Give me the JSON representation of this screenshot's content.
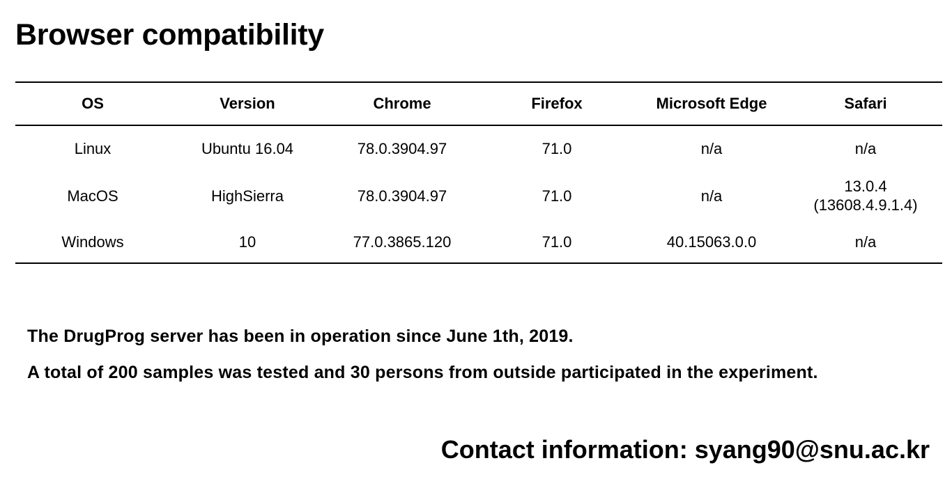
{
  "title": "Browser compatibility",
  "table": {
    "headers": [
      "OS",
      "Version",
      "Chrome",
      "Firefox",
      "Microsoft Edge",
      "Safari"
    ],
    "rows": [
      {
        "os": "Linux",
        "version": "Ubuntu 16.04",
        "chrome": "78.0.3904.97",
        "firefox": "71.0",
        "edge": "n/a",
        "safari": [
          "n/a"
        ]
      },
      {
        "os": "MacOS",
        "version": "HighSierra",
        "chrome": "78.0.3904.97",
        "firefox": "71.0",
        "edge": "n/a",
        "safari": [
          "13.0.4",
          "(13608.4.9.1.4)"
        ]
      },
      {
        "os": "Windows",
        "version": "10",
        "chrome": "77.0.3865.120",
        "firefox": "71.0",
        "edge": "40.15063.0.0",
        "safari": [
          "n/a"
        ]
      }
    ]
  },
  "info": [
    "The DrugProg server has been in operation since June 1th, 2019.",
    "A total of 200 samples was tested and 30 persons from outside participated in the experiment."
  ],
  "contact": "Contact information: syang90@snu.ac.kr"
}
